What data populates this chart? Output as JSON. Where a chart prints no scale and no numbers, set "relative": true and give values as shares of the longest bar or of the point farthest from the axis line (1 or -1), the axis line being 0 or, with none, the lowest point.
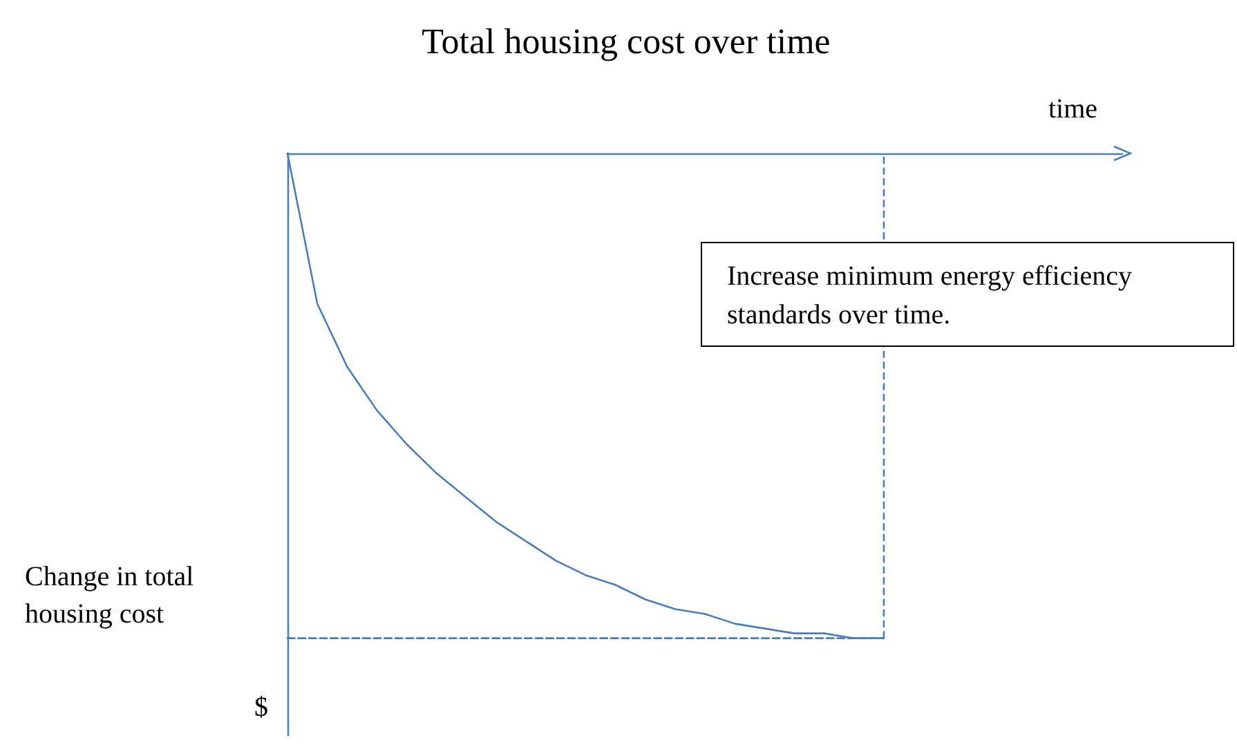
{
  "chart_data": {
    "type": "line",
    "title": "Total housing cost over time",
    "xlabel": "time",
    "ylabel": "Change in total\nhousing cost",
    "relative": true,
    "grid": false,
    "marker": "none",
    "categories": [
      null,
      null,
      null,
      null,
      null,
      null,
      null,
      null,
      null,
      null,
      null,
      null,
      null,
      null,
      null,
      null,
      null,
      null,
      null,
      null,
      null,
      null,
      null,
      null,
      null,
      null,
      null,
      null,
      null
    ],
    "series": [
      {
        "color": "#4a7ebb",
        "line_style": "solid",
        "values": [
          0,
          -0.31,
          -0.44,
          -0.53,
          -0.6,
          -0.66,
          -0.71,
          -0.76,
          -0.8,
          -0.84,
          -0.87,
          -0.89,
          -0.92,
          -0.94,
          -0.95,
          -0.97,
          -0.98,
          -0.99,
          -0.99,
          -1,
          -1,
          null,
          null,
          null,
          null,
          null,
          null,
          null,
          null
        ]
      },
      {
        "color": "#4a7ebb",
        "line_style": "dashed",
        "values": [
          -1,
          -1,
          -1,
          -1,
          -1,
          -1,
          -1,
          -1,
          -1,
          -1,
          -1,
          -1,
          -1,
          -1,
          -1,
          -1,
          -1,
          -1,
          -1,
          -1,
          -1,
          null,
          null,
          null,
          null,
          null,
          null,
          null,
          null
        ]
      }
    ],
    "annotations": [
      "Increase minimum energy efficiency standards over time.",
      "$"
    ]
  }
}
